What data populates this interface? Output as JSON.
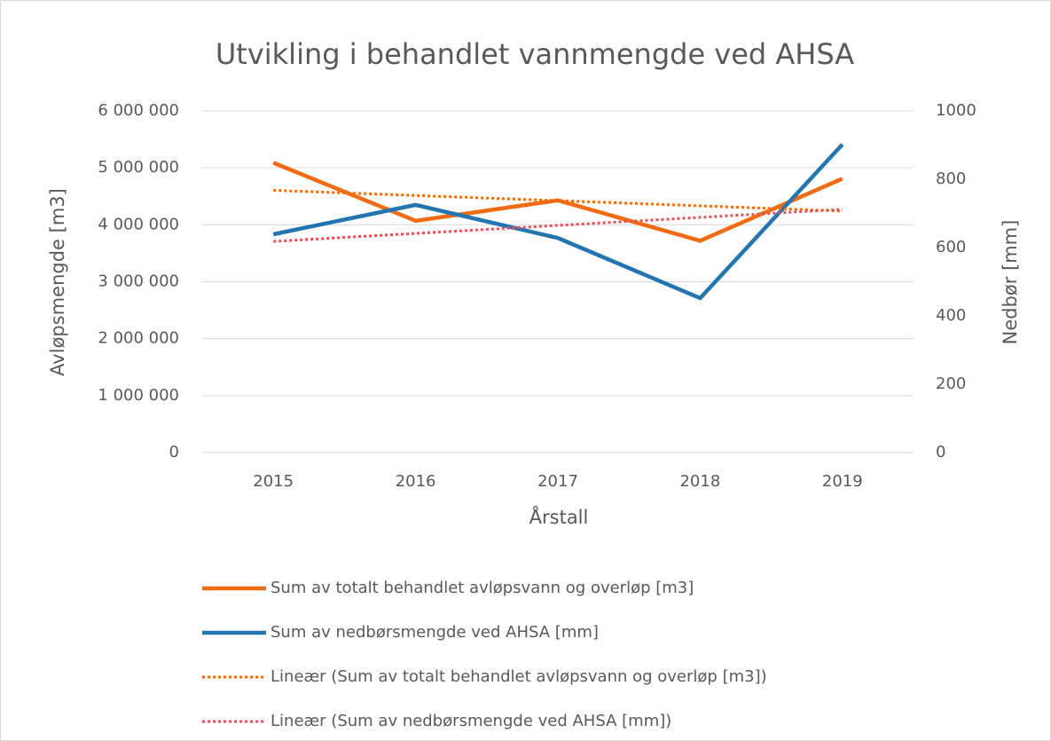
{
  "chart_data": {
    "type": "line",
    "title": "Utvikling i behandlet vannmengde ved AHSA",
    "x_label": "Årstall",
    "y_label": "Avløpsmengde [m3]",
    "y2_label": "Nedbør [mm]",
    "categories": [
      "2015",
      "2016",
      "2017",
      "2018",
      "2019"
    ],
    "ylim": [
      0,
      6000000
    ],
    "yticks": [
      0,
      {
        "value": 1000000,
        "label": "1 000 000"
      },
      {
        "value": 2000000,
        "label": "2 000 000"
      },
      {
        "value": 3000000,
        "label": "3 000 000"
      },
      {
        "value": 4000000,
        "label": "4 000 000"
      },
      {
        "value": 5000000,
        "label": "5 000 000"
      },
      {
        "value": 6000000,
        "label": "6 000 000"
      }
    ],
    "y2lim": [
      0,
      1000
    ],
    "y2ticks": [
      0,
      200,
      400,
      600,
      800,
      1000
    ],
    "grid": true,
    "legend": "bottom",
    "series": [
      {
        "name": "Sum av totalt behandlet avløpsvann og overløp [m3]",
        "color": "#f26b10",
        "style": "solid",
        "values": [
          5090000,
          4070000,
          4430000,
          3720000,
          4810000
        ]
      },
      {
        "name": "Sum av nedbørsmengde ved AHSA [mm]",
        "color": "#2275b0",
        "style": "solid",
        "axis": "y2",
        "values": [
          639,
          725,
          628,
          452,
          902
        ]
      },
      {
        "name": "Lineær (Sum av totalt behandlet avløpsvann og overløp [m3])",
        "color": "#f26b10",
        "style": "dotted",
        "values": [
          4606000,
          4515000,
          4424000,
          4333000,
          4242000
        ]
      },
      {
        "name": "Lineær (Sum av nedbørsmengde ved AHSA [mm])",
        "color": "#e4505a",
        "style": "dotted",
        "axis": "y2",
        "values": [
          618,
          641.5,
          665,
          688.5,
          712
        ]
      }
    ]
  }
}
